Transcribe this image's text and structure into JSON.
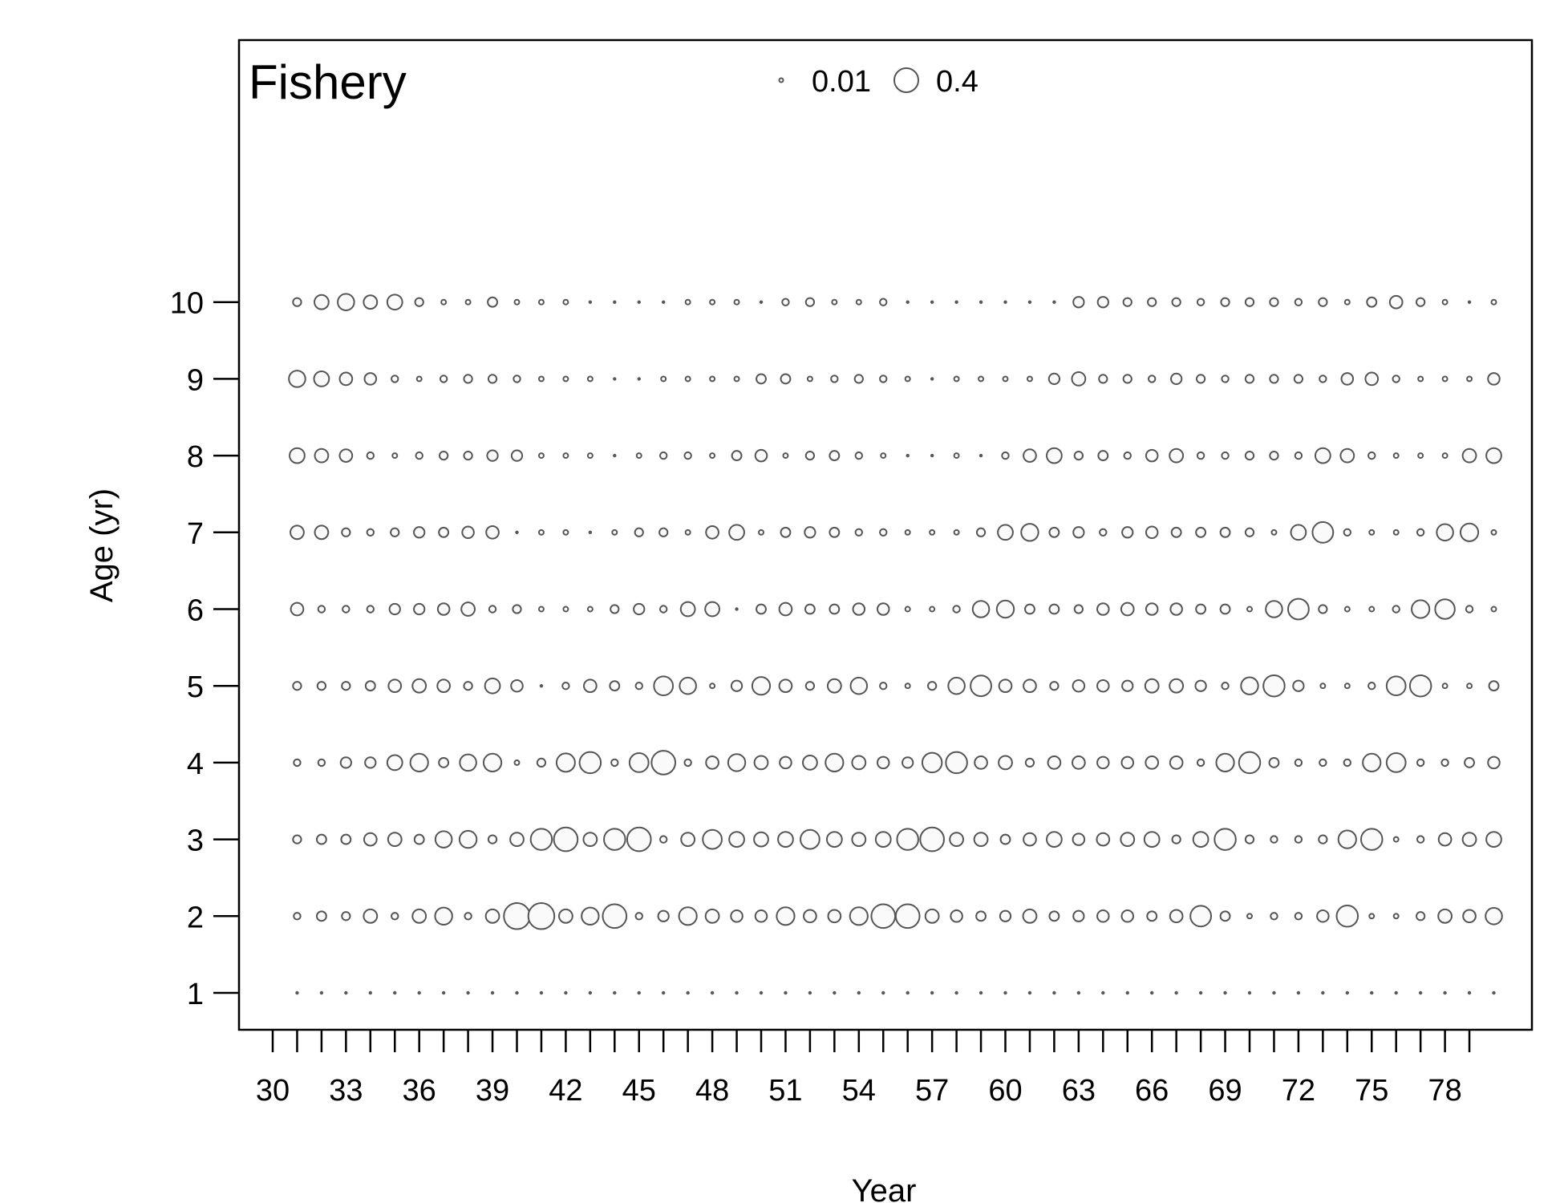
{
  "chart_data": {
    "type": "bubble",
    "title": "Fishery",
    "xlabel": "Year",
    "ylabel": "Age (yr)",
    "x_tick_labels": [
      "30",
      "33",
      "36",
      "39",
      "42",
      "45",
      "48",
      "51",
      "54",
      "57",
      "60",
      "63",
      "66",
      "69",
      "72",
      "75",
      "78"
    ],
    "y_tick_labels": [
      "1",
      "2",
      "3",
      "4",
      "5",
      "6",
      "7",
      "8",
      "9",
      "10"
    ],
    "legend": [
      {
        "label": "0.01",
        "value": 0.01
      },
      {
        "label": "0.4",
        "value": 0.4
      }
    ],
    "xlim": [
      29.5,
      80.5
    ],
    "ylim": [
      1,
      10
    ],
    "years": [
      31,
      32,
      33,
      34,
      35,
      36,
      37,
      38,
      39,
      40,
      41,
      42,
      43,
      44,
      45,
      46,
      47,
      48,
      49,
      50,
      51,
      52,
      53,
      54,
      55,
      56,
      57,
      58,
      59,
      60,
      61,
      62,
      63,
      64,
      65,
      66,
      67,
      68,
      69,
      70,
      71,
      72,
      73,
      74,
      75,
      76,
      77,
      78,
      79,
      80
    ],
    "ages": [
      1,
      2,
      3,
      4,
      5,
      6,
      7,
      8,
      9,
      10
    ],
    "proportions_by_age": {
      "1": [
        0.001,
        0.001,
        0.001,
        0.001,
        0.001,
        0.001,
        0.001,
        0.001,
        0.001,
        0.001,
        0.001,
        0.001,
        0.001,
        0.001,
        0.001,
        0.001,
        0.001,
        0.001,
        0.001,
        0.001,
        0.001,
        0.001,
        0.001,
        0.001,
        0.001,
        0.001,
        0.001,
        0.001,
        0.001,
        0.001,
        0.001,
        0.001,
        0.001,
        0.001,
        0.001,
        0.001,
        0.001,
        0.001,
        0.001,
        0.001,
        0.001,
        0.001,
        0.001,
        0.001,
        0.001,
        0.001,
        0.001,
        0.001,
        0.001,
        0.001
      ],
      "2": [
        0.02,
        0.04,
        0.03,
        0.08,
        0.02,
        0.08,
        0.13,
        0.02,
        0.08,
        0.3,
        0.3,
        0.08,
        0.13,
        0.25,
        0.02,
        0.05,
        0.14,
        0.08,
        0.06,
        0.06,
        0.14,
        0.07,
        0.07,
        0.14,
        0.25,
        0.25,
        0.08,
        0.06,
        0.04,
        0.05,
        0.08,
        0.04,
        0.05,
        0.06,
        0.06,
        0.04,
        0.07,
        0.19,
        0.04,
        0.01,
        0.02,
        0.02,
        0.06,
        0.2,
        0.01,
        0.01,
        0.03,
        0.08,
        0.07,
        0.12
      ],
      "3": [
        0.03,
        0.04,
        0.04,
        0.07,
        0.08,
        0.04,
        0.12,
        0.13,
        0.03,
        0.08,
        0.2,
        0.25,
        0.08,
        0.2,
        0.25,
        0.02,
        0.08,
        0.16,
        0.1,
        0.09,
        0.1,
        0.16,
        0.1,
        0.08,
        0.1,
        0.2,
        0.25,
        0.08,
        0.08,
        0.04,
        0.07,
        0.1,
        0.06,
        0.07,
        0.08,
        0.1,
        0.03,
        0.1,
        0.2,
        0.03,
        0.02,
        0.02,
        0.03,
        0.14,
        0.2,
        0.01,
        0.02,
        0.07,
        0.08,
        0.1
      ],
      "4": [
        0.02,
        0.02,
        0.05,
        0.05,
        0.1,
        0.14,
        0.04,
        0.12,
        0.14,
        0.01,
        0.03,
        0.15,
        0.2,
        0.02,
        0.16,
        0.25,
        0.02,
        0.07,
        0.13,
        0.08,
        0.06,
        0.09,
        0.14,
        0.08,
        0.06,
        0.05,
        0.17,
        0.2,
        0.07,
        0.08,
        0.03,
        0.07,
        0.07,
        0.06,
        0.06,
        0.07,
        0.07,
        0.02,
        0.14,
        0.2,
        0.04,
        0.02,
        0.02,
        0.02,
        0.14,
        0.16,
        0.02,
        0.02,
        0.04,
        0.06
      ],
      "5": [
        0.03,
        0.03,
        0.03,
        0.04,
        0.07,
        0.08,
        0.07,
        0.03,
        0.1,
        0.06,
        0.001,
        0.02,
        0.07,
        0.04,
        0.02,
        0.16,
        0.12,
        0.01,
        0.05,
        0.14,
        0.07,
        0.03,
        0.08,
        0.12,
        0.02,
        0.01,
        0.03,
        0.12,
        0.19,
        0.07,
        0.07,
        0.03,
        0.06,
        0.06,
        0.05,
        0.08,
        0.08,
        0.05,
        0.02,
        0.13,
        0.2,
        0.05,
        0.01,
        0.01,
        0.02,
        0.16,
        0.2,
        0.01,
        0.01,
        0.04
      ],
      "6": [
        0.07,
        0.02,
        0.02,
        0.02,
        0.05,
        0.05,
        0.06,
        0.08,
        0.02,
        0.03,
        0.01,
        0.01,
        0.01,
        0.03,
        0.05,
        0.02,
        0.09,
        0.09,
        0.001,
        0.04,
        0.07,
        0.04,
        0.04,
        0.06,
        0.06,
        0.01,
        0.01,
        0.02,
        0.12,
        0.13,
        0.04,
        0.04,
        0.03,
        0.06,
        0.07,
        0.06,
        0.06,
        0.04,
        0.04,
        0.01,
        0.12,
        0.19,
        0.03,
        0.01,
        0.01,
        0.02,
        0.14,
        0.17,
        0.02,
        0.01
      ],
      "7": [
        0.08,
        0.08,
        0.03,
        0.02,
        0.03,
        0.05,
        0.04,
        0.06,
        0.07,
        0.001,
        0.01,
        0.01,
        0.001,
        0.01,
        0.03,
        0.03,
        0.01,
        0.07,
        0.1,
        0.01,
        0.04,
        0.05,
        0.04,
        0.02,
        0.02,
        0.01,
        0.01,
        0.01,
        0.03,
        0.1,
        0.13,
        0.04,
        0.05,
        0.02,
        0.05,
        0.06,
        0.04,
        0.04,
        0.04,
        0.03,
        0.01,
        0.1,
        0.19,
        0.02,
        0.01,
        0.01,
        0.02,
        0.12,
        0.14,
        0.01
      ],
      "8": [
        0.1,
        0.08,
        0.07,
        0.02,
        0.01,
        0.02,
        0.03,
        0.03,
        0.05,
        0.05,
        0.01,
        0.01,
        0.01,
        0.001,
        0.01,
        0.02,
        0.02,
        0.01,
        0.04,
        0.06,
        0.01,
        0.03,
        0.04,
        0.02,
        0.01,
        0.001,
        0.001,
        0.01,
        0.001,
        0.02,
        0.07,
        0.1,
        0.03,
        0.04,
        0.02,
        0.06,
        0.08,
        0.02,
        0.02,
        0.03,
        0.03,
        0.02,
        0.1,
        0.08,
        0.02,
        0.01,
        0.01,
        0.01,
        0.08,
        0.1
      ],
      "9": [
        0.12,
        0.1,
        0.07,
        0.06,
        0.02,
        0.01,
        0.02,
        0.03,
        0.03,
        0.02,
        0.01,
        0.01,
        0.01,
        0.001,
        0.001,
        0.01,
        0.01,
        0.01,
        0.01,
        0.04,
        0.04,
        0.01,
        0.02,
        0.03,
        0.02,
        0.01,
        0.001,
        0.01,
        0.01,
        0.01,
        0.01,
        0.05,
        0.08,
        0.03,
        0.03,
        0.02,
        0.05,
        0.03,
        0.02,
        0.03,
        0.03,
        0.03,
        0.02,
        0.06,
        0.07,
        0.02,
        0.01,
        0.01,
        0.01,
        0.06
      ],
      "10": [
        0.03,
        0.09,
        0.12,
        0.08,
        0.1,
        0.03,
        0.01,
        0.01,
        0.04,
        0.01,
        0.01,
        0.01,
        0.001,
        0.001,
        0.001,
        0.001,
        0.01,
        0.01,
        0.01,
        0.001,
        0.02,
        0.03,
        0.01,
        0.01,
        0.02,
        0.001,
        0.001,
        0.001,
        0.001,
        0.001,
        0.001,
        0.001,
        0.05,
        0.05,
        0.03,
        0.03,
        0.03,
        0.02,
        0.03,
        0.03,
        0.03,
        0.02,
        0.03,
        0.01,
        0.04,
        0.07,
        0.03,
        0.01,
        0.001,
        0.01
      ]
    }
  }
}
